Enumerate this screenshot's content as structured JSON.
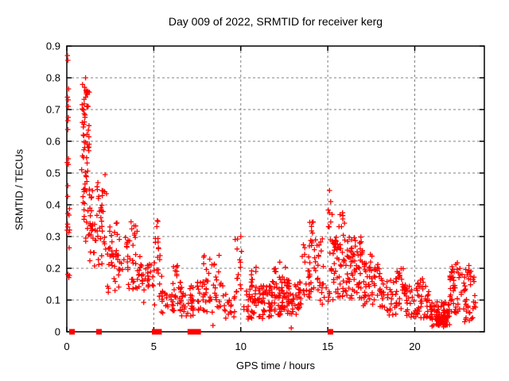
{
  "chart_data": {
    "type": "scatter",
    "title": "Day 009 of 2022, SRMTID for receiver kerg",
    "xlabel": "GPS time / hours",
    "ylabel": "SRMTID / TECUs",
    "xlim": [
      0,
      24
    ],
    "ylim": [
      0,
      0.9
    ],
    "x_ticks": [
      0,
      5,
      10,
      15,
      20
    ],
    "x_tick_labels": [
      "0",
      "5",
      "10",
      "15",
      "20"
    ],
    "y_ticks": [
      0,
      0.1,
      0.2,
      0.3,
      0.4,
      0.5,
      0.6,
      0.7,
      0.8,
      0.9
    ],
    "y_tick_labels": [
      "0",
      "0.1",
      "0.2",
      "0.3",
      "0.4",
      "0.5",
      "0.6",
      "0.7",
      "0.8",
      "0.9"
    ],
    "grid": true,
    "legend": "none",
    "marker": "plus",
    "marker_color": "#ff0000",
    "grid_color": "#808080",
    "border_color": "#000000",
    "axis_marker": "filled-square",
    "axis_marker_color": "#ff0000",
    "axis_marker_x": [
      0.3,
      1.85,
      5.05,
      5.3,
      7.1,
      7.25,
      7.4,
      7.55,
      15.15
    ],
    "outlier_points": [
      [
        0.04,
        0.87
      ],
      [
        0.06,
        0.855
      ],
      [
        1.08,
        0.8
      ],
      [
        1.02,
        0.77
      ],
      [
        0.1,
        0.765
      ],
      [
        1.12,
        0.75
      ],
      [
        0.08,
        0.71
      ],
      [
        0.06,
        0.665
      ],
      [
        0.09,
        0.545
      ],
      [
        2.2,
        0.495
      ],
      [
        10.0,
        0.3
      ],
      [
        15.1,
        0.445
      ],
      [
        15.17,
        0.41
      ],
      [
        15.85,
        0.375
      ],
      [
        5.2,
        0.35
      ],
      [
        14.1,
        0.345
      ],
      [
        12.9,
        0.012
      ],
      [
        8.4,
        0.02
      ]
    ],
    "cluster_format": "[x_start_hours, x_end_hours, y_min_TECUs, y_max_TECUs, n_points]",
    "clusters": [
      [
        0.02,
        0.18,
        0.16,
        0.5,
        14
      ],
      [
        0.02,
        0.14,
        0.52,
        0.78,
        6
      ],
      [
        0.85,
        1.3,
        0.55,
        0.78,
        40
      ],
      [
        0.85,
        1.35,
        0.4,
        0.55,
        20
      ],
      [
        0.9,
        1.5,
        0.28,
        0.4,
        16
      ],
      [
        1.3,
        1.7,
        0.2,
        0.34,
        12
      ],
      [
        1.33,
        1.48,
        0.33,
        0.46,
        6
      ],
      [
        1.7,
        2.3,
        0.3,
        0.48,
        24
      ],
      [
        1.8,
        2.45,
        0.18,
        0.3,
        12
      ],
      [
        2.3,
        3.3,
        0.12,
        0.26,
        30
      ],
      [
        2.4,
        3.1,
        0.26,
        0.35,
        10
      ],
      [
        3.35,
        4.05,
        0.27,
        0.35,
        14
      ],
      [
        3.3,
        4.3,
        0.13,
        0.27,
        30
      ],
      [
        4.3,
        5.05,
        0.08,
        0.22,
        30
      ],
      [
        5.05,
        5.35,
        0.26,
        0.35,
        8
      ],
      [
        5.05,
        5.5,
        0.1,
        0.26,
        10
      ],
      [
        5.4,
        7.3,
        0.05,
        0.15,
        68
      ],
      [
        6.0,
        6.6,
        0.15,
        0.21,
        10
      ],
      [
        7.5,
        9.0,
        0.055,
        0.16,
        48
      ],
      [
        7.8,
        8.8,
        0.16,
        0.245,
        14
      ],
      [
        9.0,
        9.7,
        0.02,
        0.12,
        18
      ],
      [
        9.65,
        10.1,
        0.12,
        0.3,
        14
      ],
      [
        10.1,
        12.0,
        0.04,
        0.145,
        90
      ],
      [
        10.55,
        10.9,
        0.145,
        0.205,
        8
      ],
      [
        11.75,
        12.05,
        0.14,
        0.21,
        7
      ],
      [
        12.05,
        13.5,
        0.05,
        0.165,
        88
      ],
      [
        12.2,
        12.7,
        0.16,
        0.22,
        6
      ],
      [
        13.5,
        14.5,
        0.1,
        0.28,
        42
      ],
      [
        13.9,
        14.3,
        0.28,
        0.35,
        8
      ],
      [
        14.5,
        15.3,
        0.08,
        0.3,
        26
      ],
      [
        15.0,
        15.25,
        0.3,
        0.4,
        6
      ],
      [
        15.3,
        17.0,
        0.1,
        0.3,
        105
      ],
      [
        15.6,
        16.0,
        0.3,
        0.38,
        7
      ],
      [
        16.3,
        17.0,
        0.24,
        0.3,
        10
      ],
      [
        17.0,
        18.0,
        0.08,
        0.22,
        42
      ],
      [
        17.3,
        17.85,
        0.18,
        0.25,
        10
      ],
      [
        18.0,
        18.95,
        0.05,
        0.17,
        38
      ],
      [
        18.95,
        19.5,
        0.07,
        0.2,
        28
      ],
      [
        19.5,
        20.9,
        0.04,
        0.145,
        58
      ],
      [
        20.1,
        20.55,
        0.14,
        0.175,
        8
      ],
      [
        20.9,
        22.0,
        0.015,
        0.095,
        68
      ],
      [
        21.2,
        21.9,
        0.02,
        0.055,
        42
      ],
      [
        22.0,
        22.6,
        0.05,
        0.22,
        40
      ],
      [
        22.6,
        23.5,
        0.03,
        0.21,
        46
      ]
    ],
    "seed": 42
  }
}
